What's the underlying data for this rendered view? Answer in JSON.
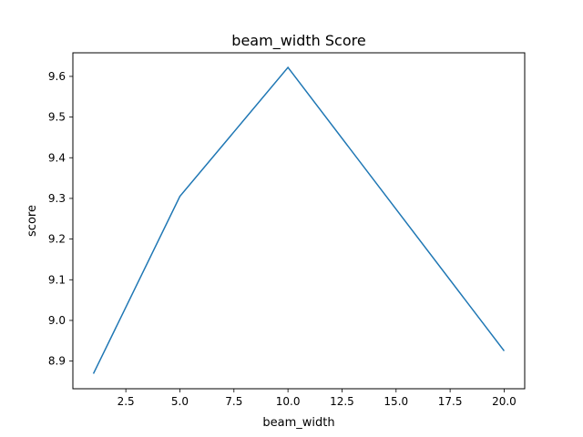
{
  "chart_data": {
    "type": "line",
    "title": "beam_width Score",
    "xlabel": "beam_width",
    "ylabel": "score",
    "xlim": [
      0.05,
      20.95
    ],
    "ylim": [
      8.832,
      9.658
    ],
    "xticks": [
      2.5,
      5.0,
      7.5,
      10.0,
      12.5,
      15.0,
      17.5,
      20.0
    ],
    "xtick_labels": [
      "2.5",
      "5.0",
      "7.5",
      "10.0",
      "12.5",
      "15.0",
      "17.5",
      "20.0"
    ],
    "yticks": [
      8.9,
      9.0,
      9.1,
      9.2,
      9.3,
      9.4,
      9.5,
      9.6
    ],
    "ytick_labels": [
      "8.9",
      "9.0",
      "9.1",
      "9.2",
      "9.3",
      "9.4",
      "9.5",
      "9.6"
    ],
    "grid": false,
    "series": [
      {
        "x": [
          1,
          5,
          10,
          20
        ],
        "values": [
          8.869,
          9.305,
          9.622,
          8.925
        ],
        "color": "#1f77b4"
      }
    ]
  }
}
